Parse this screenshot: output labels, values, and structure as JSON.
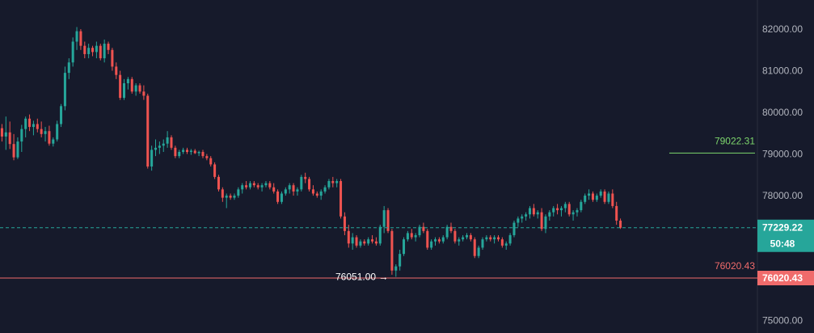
{
  "chart_data": {
    "type": "candlestick",
    "ylim": [
      74700,
      82700
    ],
    "y_ticks": [
      {
        "value": 82000,
        "label": "82000.00"
      },
      {
        "value": 81000,
        "label": "81000.00"
      },
      {
        "value": 80000,
        "label": "80000.00"
      },
      {
        "value": 79000,
        "label": "79000.00"
      },
      {
        "value": 78000,
        "label": "78000.00"
      },
      {
        "value": 75000,
        "label": "75000.00"
      }
    ],
    "last_price": {
      "value": 77229.22,
      "label": "77229.22",
      "countdown": "50:48"
    },
    "level_green": {
      "value": 79022.31,
      "label": "79022.31"
    },
    "level_red": {
      "value": 76020.43,
      "label": "76020.43",
      "tag": "76020.43"
    },
    "low_marker": {
      "value": 76051.0,
      "label": "76051.00 →"
    },
    "candles": [
      [
        79620,
        79720,
        79300,
        79420
      ],
      [
        79420,
        79900,
        79100,
        79520
      ],
      [
        79520,
        79780,
        79120,
        79240
      ],
      [
        79240,
        79480,
        78850,
        78920
      ],
      [
        78920,
        79400,
        78880,
        79300
      ],
      [
        79300,
        79700,
        79050,
        79600
      ],
      [
        79600,
        79900,
        79400,
        79850
      ],
      [
        79850,
        79950,
        79550,
        79650
      ],
      [
        79650,
        79800,
        79450,
        79720
      ],
      [
        79720,
        79850,
        79520,
        79600
      ],
      [
        79600,
        79780,
        79400,
        79480
      ],
      [
        79480,
        79650,
        79300,
        79550
      ],
      [
        79550,
        79680,
        79200,
        79250
      ],
      [
        79250,
        79400,
        79180,
        79350
      ],
      [
        79350,
        79800,
        79300,
        79720
      ],
      [
        79720,
        80200,
        79650,
        80150
      ],
      [
        80150,
        81100,
        80050,
        80950
      ],
      [
        80950,
        81300,
        80800,
        81200
      ],
      [
        81200,
        81800,
        81100,
        81700
      ],
      [
        81700,
        82050,
        81500,
        81950
      ],
      [
        81950,
        82000,
        81500,
        81600
      ],
      [
        81600,
        81700,
        81300,
        81400
      ],
      [
        81400,
        81650,
        81300,
        81550
      ],
      [
        81550,
        81600,
        81350,
        81450
      ],
      [
        81450,
        81700,
        81300,
        81600
      ],
      [
        81600,
        81650,
        81250,
        81300
      ],
      [
        81300,
        81750,
        81200,
        81650
      ],
      [
        81650,
        81700,
        81400,
        81500
      ],
      [
        81500,
        81550,
        81000,
        81100
      ],
      [
        81100,
        81200,
        80800,
        80900
      ],
      [
        80900,
        81000,
        80300,
        80350
      ],
      [
        80350,
        80800,
        80300,
        80700
      ],
      [
        80700,
        80850,
        80550,
        80800
      ],
      [
        80800,
        80850,
        80450,
        80500
      ],
      [
        80500,
        80700,
        80400,
        80650
      ],
      [
        80650,
        80700,
        80450,
        80500
      ],
      [
        80500,
        80650,
        80300,
        80400
      ],
      [
        80400,
        80450,
        78650,
        78700
      ],
      [
        78700,
        79200,
        78600,
        79100
      ],
      [
        79100,
        79350,
        78950,
        79150
      ],
      [
        79150,
        79300,
        79000,
        79200
      ],
      [
        79200,
        79350,
        79050,
        79250
      ],
      [
        79250,
        79550,
        79150,
        79400
      ],
      [
        79400,
        79450,
        79100,
        79150
      ],
      [
        79150,
        79200,
        78900,
        78950
      ],
      [
        78950,
        79100,
        78900,
        79050
      ],
      [
        79050,
        79150,
        79000,
        79100
      ],
      [
        79100,
        79150,
        79000,
        79050
      ],
      [
        79050,
        79120,
        78980,
        79080
      ],
      [
        79080,
        79120,
        79000,
        79020
      ],
      [
        79020,
        79080,
        78950,
        79050
      ],
      [
        79050,
        79100,
        78900,
        78950
      ],
      [
        78950,
        79000,
        78850,
        78900
      ],
      [
        78900,
        78950,
        78700,
        78750
      ],
      [
        78750,
        78800,
        78400,
        78450
      ],
      [
        78450,
        78500,
        78100,
        78150
      ],
      [
        78150,
        78200,
        77850,
        77950
      ],
      [
        77950,
        78050,
        77700,
        78000
      ],
      [
        78000,
        78050,
        77900,
        77950
      ],
      [
        77950,
        78050,
        77900,
        78000
      ],
      [
        78000,
        78200,
        77950,
        78150
      ],
      [
        78150,
        78300,
        78050,
        78250
      ],
      [
        78250,
        78350,
        78150,
        78200
      ],
      [
        78200,
        78350,
        78150,
        78300
      ],
      [
        78300,
        78350,
        78200,
        78250
      ],
      [
        78250,
        78300,
        78150,
        78200
      ],
      [
        78200,
        78300,
        78100,
        78250
      ],
      [
        78250,
        78350,
        78200,
        78300
      ],
      [
        78300,
        78350,
        78150,
        78200
      ],
      [
        78200,
        78300,
        78050,
        78100
      ],
      [
        78100,
        78150,
        77800,
        77850
      ],
      [
        77850,
        78100,
        77800,
        78050
      ],
      [
        78050,
        78200,
        78000,
        78150
      ],
      [
        78150,
        78300,
        78050,
        78250
      ],
      [
        78250,
        78300,
        78000,
        78100
      ],
      [
        78100,
        78200,
        78000,
        78150
      ],
      [
        78150,
        78500,
        78100,
        78450
      ],
      [
        78450,
        78550,
        78300,
        78400
      ],
      [
        78400,
        78450,
        78100,
        78150
      ],
      [
        78150,
        78250,
        78000,
        78050
      ],
      [
        78050,
        78100,
        77950,
        78000
      ],
      [
        78000,
        78150,
        77900,
        78100
      ],
      [
        78100,
        78250,
        78050,
        78200
      ],
      [
        78200,
        78400,
        78150,
        78350
      ],
      [
        78350,
        78450,
        78200,
        78300
      ],
      [
        78300,
        78400,
        78200,
        78350
      ],
      [
        78350,
        78400,
        77450,
        77500
      ],
      [
        77500,
        77600,
        77050,
        77150
      ],
      [
        77150,
        77300,
        76750,
        76850
      ],
      [
        76850,
        77100,
        76700,
        77000
      ],
      [
        77000,
        77050,
        76750,
        76800
      ],
      [
        76800,
        76950,
        76750,
        76900
      ],
      [
        76900,
        76950,
        76800,
        76850
      ],
      [
        76850,
        77000,
        76800,
        76950
      ],
      [
        76950,
        77050,
        76850,
        76900
      ],
      [
        76900,
        77000,
        76800,
        76850
      ],
      [
        76850,
        77300,
        76800,
        77250
      ],
      [
        77250,
        77750,
        77100,
        77650
      ],
      [
        77650,
        77700,
        77100,
        77150
      ],
      [
        77150,
        77200,
        76100,
        76200
      ],
      [
        76200,
        76350,
        76050,
        76300
      ],
      [
        76300,
        76700,
        76200,
        76600
      ],
      [
        76600,
        77000,
        76550,
        76950
      ],
      [
        76950,
        77150,
        76900,
        77100
      ],
      [
        77100,
        77200,
        76950,
        77000
      ],
      [
        77000,
        77100,
        76900,
        77050
      ],
      [
        77050,
        77300,
        77000,
        77250
      ],
      [
        77250,
        77350,
        77100,
        77150
      ],
      [
        77150,
        77200,
        76700,
        76750
      ],
      [
        76750,
        76950,
        76700,
        76900
      ],
      [
        76900,
        77000,
        76800,
        76950
      ],
      [
        76950,
        77000,
        76850,
        76900
      ],
      [
        76900,
        77050,
        76850,
        77000
      ],
      [
        77000,
        77300,
        76950,
        77250
      ],
      [
        77250,
        77350,
        77100,
        77150
      ],
      [
        77150,
        77200,
        76850,
        76900
      ],
      [
        76900,
        77000,
        76800,
        76950
      ],
      [
        76950,
        77050,
        76900,
        77000
      ],
      [
        77000,
        77100,
        76950,
        77050
      ],
      [
        77050,
        77100,
        76900,
        76950
      ],
      [
        76950,
        77000,
        76500,
        76550
      ],
      [
        76550,
        76800,
        76500,
        76750
      ],
      [
        76750,
        77000,
        76700,
        76950
      ],
      [
        76950,
        77050,
        76900,
        77000
      ],
      [
        77000,
        77050,
        76900,
        76950
      ],
      [
        76950,
        77050,
        76850,
        77000
      ],
      [
        77000,
        77050,
        76900,
        76950
      ],
      [
        76950,
        77000,
        76750,
        76800
      ],
      [
        76800,
        76900,
        76700,
        76850
      ],
      [
        76850,
        77100,
        76800,
        77050
      ],
      [
        77050,
        77400,
        77000,
        77350
      ],
      [
        77350,
        77500,
        77250,
        77450
      ],
      [
        77450,
        77550,
        77350,
        77500
      ],
      [
        77500,
        77600,
        77400,
        77550
      ],
      [
        77550,
        77750,
        77450,
        77700
      ],
      [
        77700,
        77800,
        77500,
        77550
      ],
      [
        77550,
        77650,
        77450,
        77600
      ],
      [
        77600,
        77700,
        77150,
        77200
      ],
      [
        77200,
        77550,
        77100,
        77500
      ],
      [
        77500,
        77650,
        77400,
        77600
      ],
      [
        77600,
        77750,
        77500,
        77700
      ],
      [
        77700,
        77800,
        77550,
        77650
      ],
      [
        77650,
        77750,
        77500,
        77700
      ],
      [
        77700,
        77850,
        77600,
        77800
      ],
      [
        77800,
        77850,
        77500,
        77550
      ],
      [
        77550,
        77650,
        77400,
        77600
      ],
      [
        77600,
        77700,
        77500,
        77650
      ],
      [
        77650,
        77900,
        77600,
        77850
      ],
      [
        77850,
        78050,
        77800,
        78000
      ],
      [
        78000,
        78150,
        77900,
        78050
      ],
      [
        78050,
        78100,
        77850,
        77900
      ],
      [
        77900,
        78050,
        77850,
        78000
      ],
      [
        78000,
        78150,
        77950,
        78100
      ],
      [
        78100,
        78150,
        77800,
        77850
      ],
      [
        77850,
        78100,
        77800,
        78050
      ],
      [
        78050,
        78150,
        77700,
        77750
      ],
      [
        77750,
        77850,
        77300,
        77400
      ],
      [
        77400,
        77450,
        77200,
        77229
      ]
    ]
  }
}
